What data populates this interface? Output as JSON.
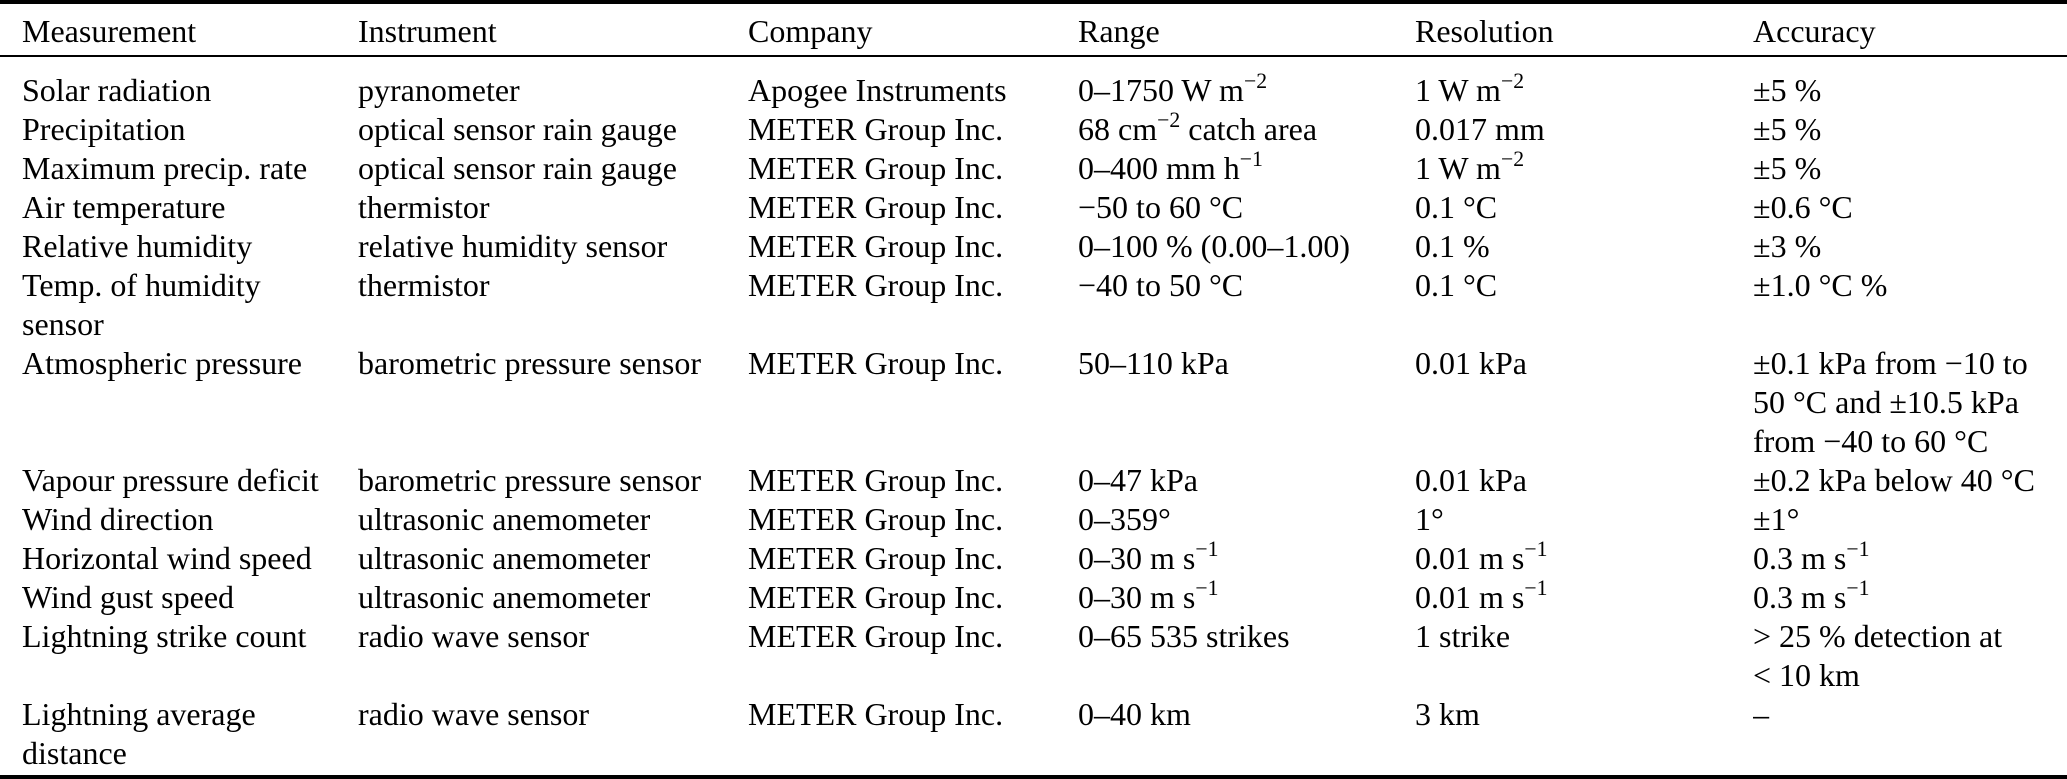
{
  "colors": {
    "text": "#000000",
    "rule": "#000000",
    "background": "#ffffff"
  },
  "table": {
    "columns": [
      "Measurement",
      "Instrument",
      "Company",
      "Range",
      "Resolution",
      "Accuracy"
    ],
    "rows": [
      {
        "measurement": "Solar radiation",
        "instrument": "pyranometer",
        "company": "Apogee Instruments",
        "range": "0–1750 W m^{−2}",
        "resolution": "1 W m^{−2}",
        "accuracy": "±5 %"
      },
      {
        "measurement": "Precipitation",
        "instrument": "optical sensor rain gauge",
        "company": "METER Group Inc.",
        "range": "68 cm^{−2} catch area",
        "resolution": "0.017 mm",
        "accuracy": "±5 %"
      },
      {
        "measurement": "Maximum precip. rate",
        "instrument": "optical sensor rain gauge",
        "company": "METER Group Inc.",
        "range": "0–400 mm h^{−1}",
        "resolution": "1 W m^{−2}",
        "accuracy": "±5 %"
      },
      {
        "measurement": "Air temperature",
        "instrument": "thermistor",
        "company": "METER Group Inc.",
        "range": "−50 to 60 °C",
        "resolution": "0.1 °C",
        "accuracy": "±0.6 °C"
      },
      {
        "measurement": "Relative humidity",
        "instrument": "relative humidity sensor",
        "company": "METER Group Inc.",
        "range": "0–100 % (0.00–1.00)",
        "resolution": "0.1 %",
        "accuracy": "±3 %"
      },
      {
        "measurement": "Temp. of humidity\nsensor",
        "instrument": "thermistor",
        "company": "METER Group Inc.",
        "range": "−40 to 50 °C",
        "resolution": "0.1 °C",
        "accuracy": "±1.0 °C %"
      },
      {
        "measurement": "Atmospheric pressure",
        "instrument": "barometric pressure sensor",
        "company": "METER Group Inc.",
        "range": "50–110 kPa",
        "resolution": "0.01 kPa",
        "accuracy": "±0.1 kPa from −10 to\n50 °C and ±10.5 kPa\nfrom −40 to 60 °C"
      },
      {
        "measurement": "Vapour pressure deficit",
        "instrument": "barometric pressure sensor",
        "company": "METER Group Inc.",
        "range": "0–47 kPa",
        "resolution": "0.01 kPa",
        "accuracy": "±0.2 kPa below 40 °C"
      },
      {
        "measurement": "Wind direction",
        "instrument": "ultrasonic anemometer",
        "company": "METER Group Inc.",
        "range": "0–359°",
        "resolution": "1°",
        "accuracy": "±1°"
      },
      {
        "measurement": "Horizontal wind speed",
        "instrument": "ultrasonic anemometer",
        "company": "METER Group Inc.",
        "range": "0–30 m s^{−1}",
        "resolution": "0.01 m s^{−1}",
        "accuracy": "0.3 m s^{−1}"
      },
      {
        "measurement": "Wind gust speed",
        "instrument": "ultrasonic anemometer",
        "company": "METER Group Inc.",
        "range": "0–30 m s^{−1}",
        "resolution": "0.01 m s^{−1}",
        "accuracy": "0.3 m s^{−1}"
      },
      {
        "measurement": "Lightning strike count",
        "instrument": "radio wave sensor",
        "company": "METER Group Inc.",
        "range": "0–65 535 strikes",
        "resolution": "1 strike",
        "accuracy": "> 25 % detection at\n< 10 km"
      },
      {
        "measurement": "Lightning average\ndistance",
        "instrument": "radio wave sensor",
        "company": "METER Group Inc.",
        "range": "0–40 km",
        "resolution": "3 km",
        "accuracy": "–"
      }
    ]
  }
}
